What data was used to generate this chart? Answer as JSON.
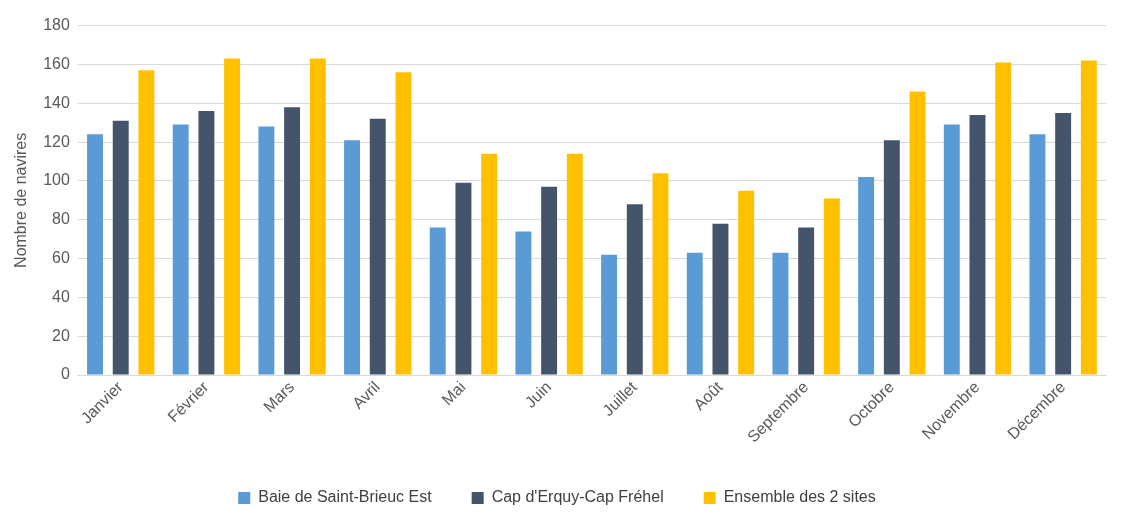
{
  "chart_data": {
    "type": "bar",
    "ylabel": "Nombre de navires",
    "categories": [
      "Janvier",
      "Février",
      "Mars",
      "Avril",
      "Mai",
      "Juin",
      "Juillet",
      "Août",
      "Septembre",
      "Octobre",
      "Novembre",
      "Décembre"
    ],
    "series": [
      {
        "name": "Baie de Saint-Brieuc Est",
        "color": "#5b9bd5",
        "values": [
          124,
          129,
          128,
          121,
          76,
          74,
          62,
          63,
          63,
          102,
          129,
          124
        ]
      },
      {
        "name": "Cap d'Erquy-Cap Fréhel",
        "color": "#44546a",
        "values": [
          131,
          136,
          138,
          132,
          99,
          97,
          88,
          78,
          76,
          121,
          134,
          135
        ]
      },
      {
        "name": "Ensemble des 2 sites",
        "color": "#ffc000",
        "values": [
          157,
          163,
          163,
          156,
          114,
          114,
          104,
          95,
          91,
          146,
          161,
          162
        ]
      }
    ],
    "ylim": [
      0,
      180
    ],
    "yticks": [
      0,
      20,
      40,
      60,
      80,
      100,
      120,
      140,
      160,
      180
    ],
    "grid": "y",
    "legend": "bottom"
  }
}
